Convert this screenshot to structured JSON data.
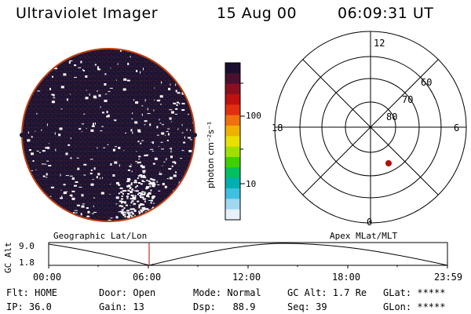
{
  "header": {
    "instrument": "Ultraviolet Imager",
    "date": "15 Aug 00",
    "time": "06:09:31 UT"
  },
  "colorbar": {
    "unit_label": "photon cm⁻²s⁻¹",
    "ticks": [
      "100",
      "10"
    ],
    "colors": [
      "#1a0f2e",
      "#4a1030",
      "#8a1020",
      "#c01010",
      "#e03010",
      "#f07010",
      "#f0b000",
      "#e8e000",
      "#a0e000",
      "#40d000",
      "#00c060",
      "#00b0b0",
      "#40c0e0",
      "#a0d8f0",
      "#e8f0f8"
    ]
  },
  "polar_plot": {
    "labels": {
      "top": "12",
      "left": "18",
      "right": "6",
      "bottom": "0"
    },
    "rings": [
      "60",
      "70",
      "80"
    ],
    "marker_color": "#b01010"
  },
  "timeline": {
    "left_title": "Geographic Lat/Lon",
    "right_title": "Apex MLat/MLT",
    "y_axis_label": "GC Alt",
    "y_top": "9.0",
    "y_bottom": "1.8",
    "x_ticks": [
      "00:00",
      "06:00",
      "12:00",
      "18:00",
      "23:59"
    ],
    "current_marker_color": "#c00000"
  },
  "status": {
    "flt": "Flt: HOME",
    "ip": "IP: 36.0",
    "door": "Door: Open",
    "gain": "Gain: 13",
    "mode": "Mode: Normal",
    "dsp": "Dsp:   88.9",
    "gc_alt": "GC Alt: 1.7 Re",
    "seq": "Seq: 39",
    "glat": "GLat: *****",
    "glon": "GLon: *****"
  },
  "image_colors": {
    "disk_bg": "#1c1430",
    "disk_edge": "#c04010",
    "speckle": "#ffffff"
  }
}
